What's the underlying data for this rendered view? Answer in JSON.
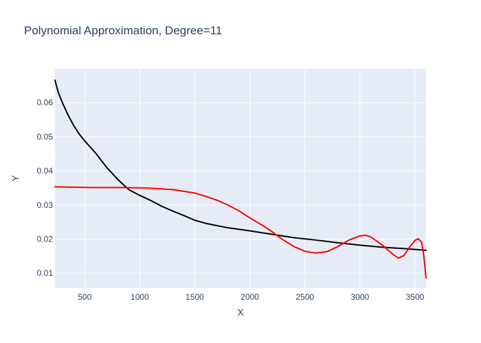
{
  "chart_data": {
    "type": "line",
    "title": "Polynomial Approximation, Degree=11",
    "xlabel": "X",
    "ylabel": "Y",
    "xlim": [
      230,
      3600
    ],
    "ylim": [
      0.0056,
      0.07
    ],
    "xticks": [
      500,
      1000,
      1500,
      2000,
      2500,
      3000,
      3500
    ],
    "yticks": [
      0.01,
      0.02,
      0.03,
      0.04,
      0.05,
      0.06
    ],
    "ytick_labels": [
      "0.01",
      "0.02",
      "0.03",
      "0.04",
      "0.05",
      "0.06"
    ],
    "grid": true,
    "legend": "none",
    "colors": {
      "plot_bg": "#e5ecf6",
      "grid": "#ffffff",
      "text": "#2a3f5f"
    },
    "series": [
      {
        "color": "#000000",
        "x": [
          230,
          260,
          300,
          350,
          400,
          450,
          500,
          600,
          700,
          800,
          900,
          1000,
          1100,
          1200,
          1300,
          1400,
          1500,
          1600,
          1800,
          2000,
          2200,
          2400,
          2600,
          2800,
          3000,
          3200,
          3400,
          3600
        ],
        "y": [
          0.0666,
          0.063,
          0.0598,
          0.0563,
          0.0533,
          0.0508,
          0.0488,
          0.0452,
          0.041,
          0.0375,
          0.0345,
          0.0328,
          0.0313,
          0.0296,
          0.0282,
          0.0269,
          0.0255,
          0.0246,
          0.0233,
          0.0224,
          0.0214,
          0.0204,
          0.0197,
          0.0189,
          0.0182,
          0.0176,
          0.0172,
          0.0167
        ]
      },
      {
        "color": "#ff0000",
        "x": [
          230,
          400,
          600,
          800,
          1000,
          1100,
          1200,
          1300,
          1400,
          1500,
          1600,
          1700,
          1800,
          1900,
          2000,
          2100,
          2200,
          2300,
          2400,
          2500,
          2600,
          2700,
          2800,
          2900,
          3000,
          3050,
          3100,
          3200,
          3300,
          3350,
          3400,
          3450,
          3500,
          3530,
          3560,
          3580,
          3600
        ],
        "y": [
          0.0353,
          0.0352,
          0.0351,
          0.0351,
          0.035,
          0.0349,
          0.0347,
          0.0345,
          0.034,
          0.0335,
          0.0325,
          0.0314,
          0.03,
          0.0283,
          0.0262,
          0.0243,
          0.0222,
          0.0198,
          0.0178,
          0.0164,
          0.0159,
          0.0163,
          0.0178,
          0.0197,
          0.0209,
          0.0211,
          0.0206,
          0.0183,
          0.0155,
          0.0144,
          0.0152,
          0.0176,
          0.0196,
          0.0201,
          0.019,
          0.015,
          0.0086
        ]
      }
    ]
  }
}
